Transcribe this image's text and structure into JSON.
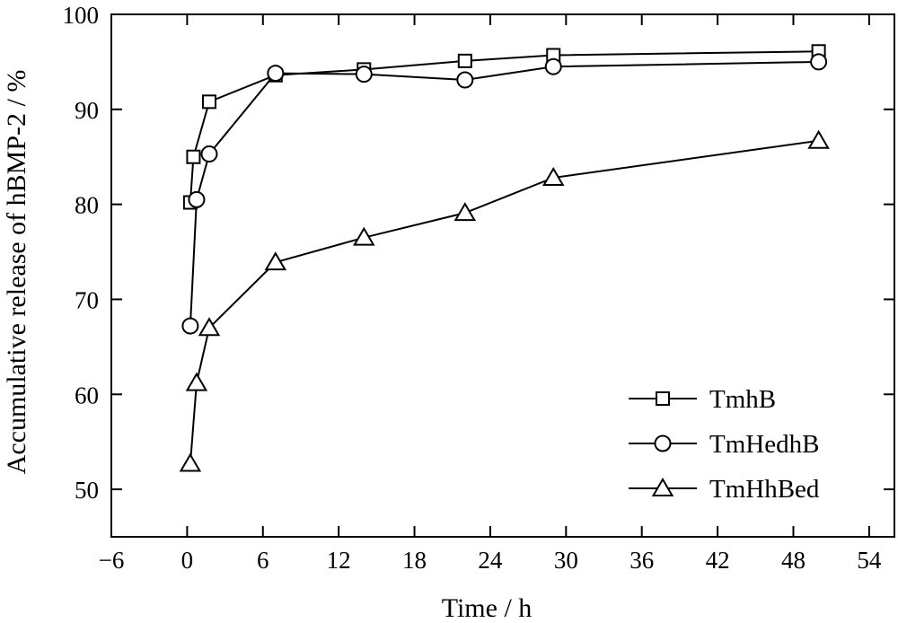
{
  "chart_data": {
    "type": "line",
    "xlabel": "Time / h",
    "ylabel": "Accumulative release of hBMP-2 / %",
    "xlim": [
      -6,
      56
    ],
    "ylim": [
      45,
      100
    ],
    "xticks": [
      -6,
      0,
      6,
      12,
      18,
      24,
      30,
      36,
      42,
      48,
      54
    ],
    "xtick_labels": [
      "−6",
      "0",
      "6",
      "12",
      "18",
      "24",
      "30",
      "36",
      "42",
      "48",
      "54"
    ],
    "yticks": [
      50,
      60,
      70,
      80,
      90,
      100
    ],
    "ytick_labels": [
      "50",
      "60",
      "70",
      "80",
      "90",
      "100"
    ],
    "grid": false,
    "legend_position": "bottom-right",
    "series": [
      {
        "name": "TmhB",
        "marker": "square",
        "x": [
          0.25,
          0.5,
          1.75,
          7,
          14,
          22,
          29,
          50
        ],
        "y": [
          80.2,
          85.0,
          90.8,
          93.6,
          94.2,
          95.1,
          95.7,
          96.1
        ]
      },
      {
        "name": "TmHedhB",
        "marker": "circle",
        "x": [
          0.25,
          0.75,
          1.75,
          7,
          14,
          22,
          29,
          50
        ],
        "y": [
          67.2,
          80.5,
          85.3,
          93.8,
          93.7,
          93.1,
          94.5,
          95.0
        ]
      },
      {
        "name": "TmHhBed",
        "marker": "triangle",
        "x": [
          0.25,
          0.75,
          1.75,
          7,
          14,
          22,
          29,
          50
        ],
        "y": [
          52.7,
          61.2,
          67.0,
          73.9,
          76.5,
          79.1,
          82.8,
          86.7
        ]
      }
    ]
  }
}
